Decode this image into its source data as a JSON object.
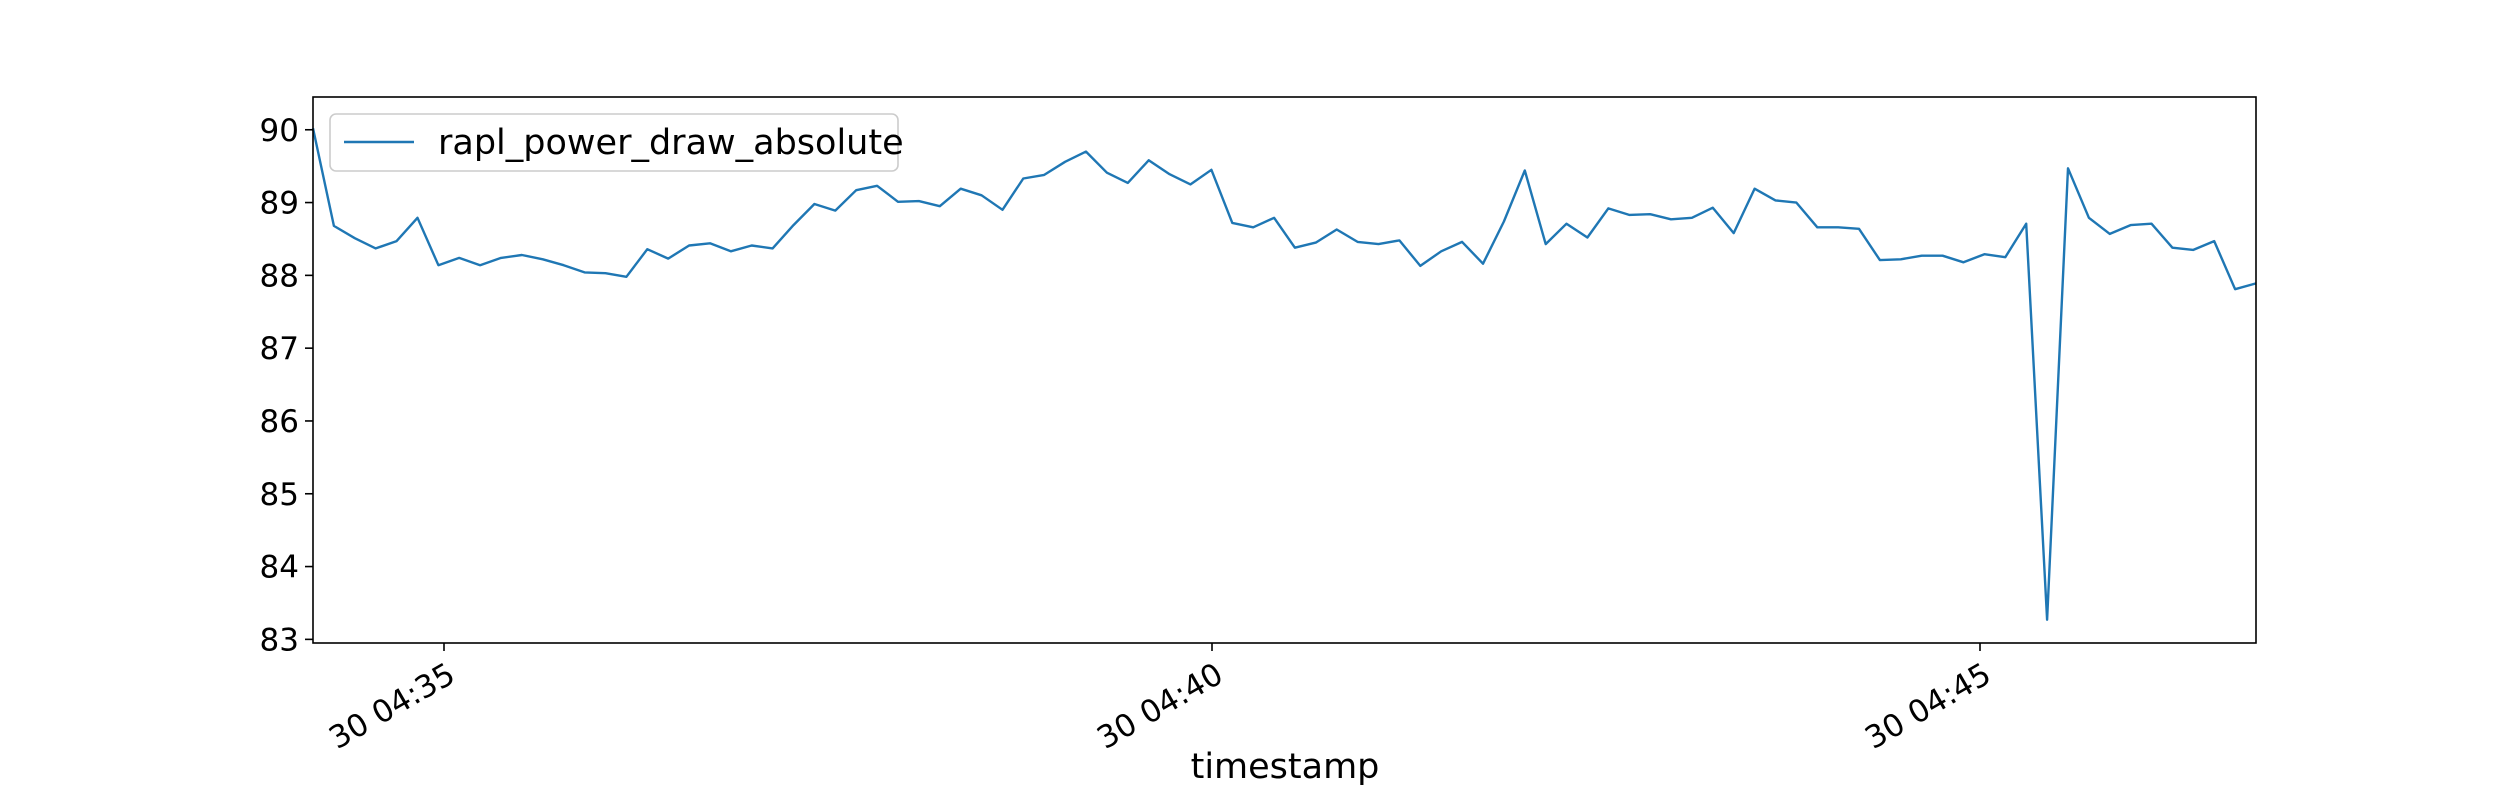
{
  "chart_data": {
    "type": "line",
    "title": "",
    "xlabel": "timestamp",
    "ylabel": "",
    "x_tick_labels": [
      "30 04:35",
      "30 04:40",
      "30 04:45"
    ],
    "y_tick_labels": [
      "83",
      "84",
      "85",
      "86",
      "87",
      "88",
      "89",
      "90"
    ],
    "ylim": [
      82.95,
      90.45
    ],
    "legend": {
      "position": "upper-left",
      "entries": [
        "rapl_power_draw_absolute"
      ]
    },
    "grid": false,
    "colors": {
      "series": "#1f77b4",
      "frame": "#000000"
    },
    "series": [
      {
        "name": "rapl_power_draw_absolute",
        "values": [
          90.02,
          88.68,
          88.51,
          88.37,
          88.47,
          88.79,
          88.14,
          88.24,
          88.14,
          88.24,
          88.28,
          88.22,
          88.14,
          88.04,
          88.03,
          87.98,
          88.36,
          88.23,
          88.41,
          88.44,
          88.33,
          88.41,
          88.37,
          88.69,
          88.98,
          88.89,
          89.17,
          89.23,
          89.01,
          89.02,
          88.95,
          89.19,
          89.1,
          88.9,
          89.33,
          89.38,
          89.56,
          89.7,
          89.41,
          89.27,
          89.58,
          89.39,
          89.25,
          89.45,
          88.72,
          88.66,
          88.79,
          88.38,
          88.45,
          88.63,
          88.46,
          88.43,
          88.48,
          88.13,
          88.33,
          88.46,
          88.16,
          88.74,
          89.44,
          88.43,
          88.71,
          88.52,
          88.92,
          88.83,
          88.84,
          88.77,
          88.79,
          88.93,
          88.58,
          89.19,
          89.03,
          89.0,
          88.66,
          88.66,
          88.64,
          88.21,
          88.22,
          88.27,
          88.27,
          88.18,
          88.29,
          88.25,
          88.71,
          83.27,
          89.47,
          88.79,
          88.57,
          88.69,
          88.71,
          88.38,
          88.35,
          88.47,
          87.81,
          87.89
        ]
      }
    ]
  }
}
